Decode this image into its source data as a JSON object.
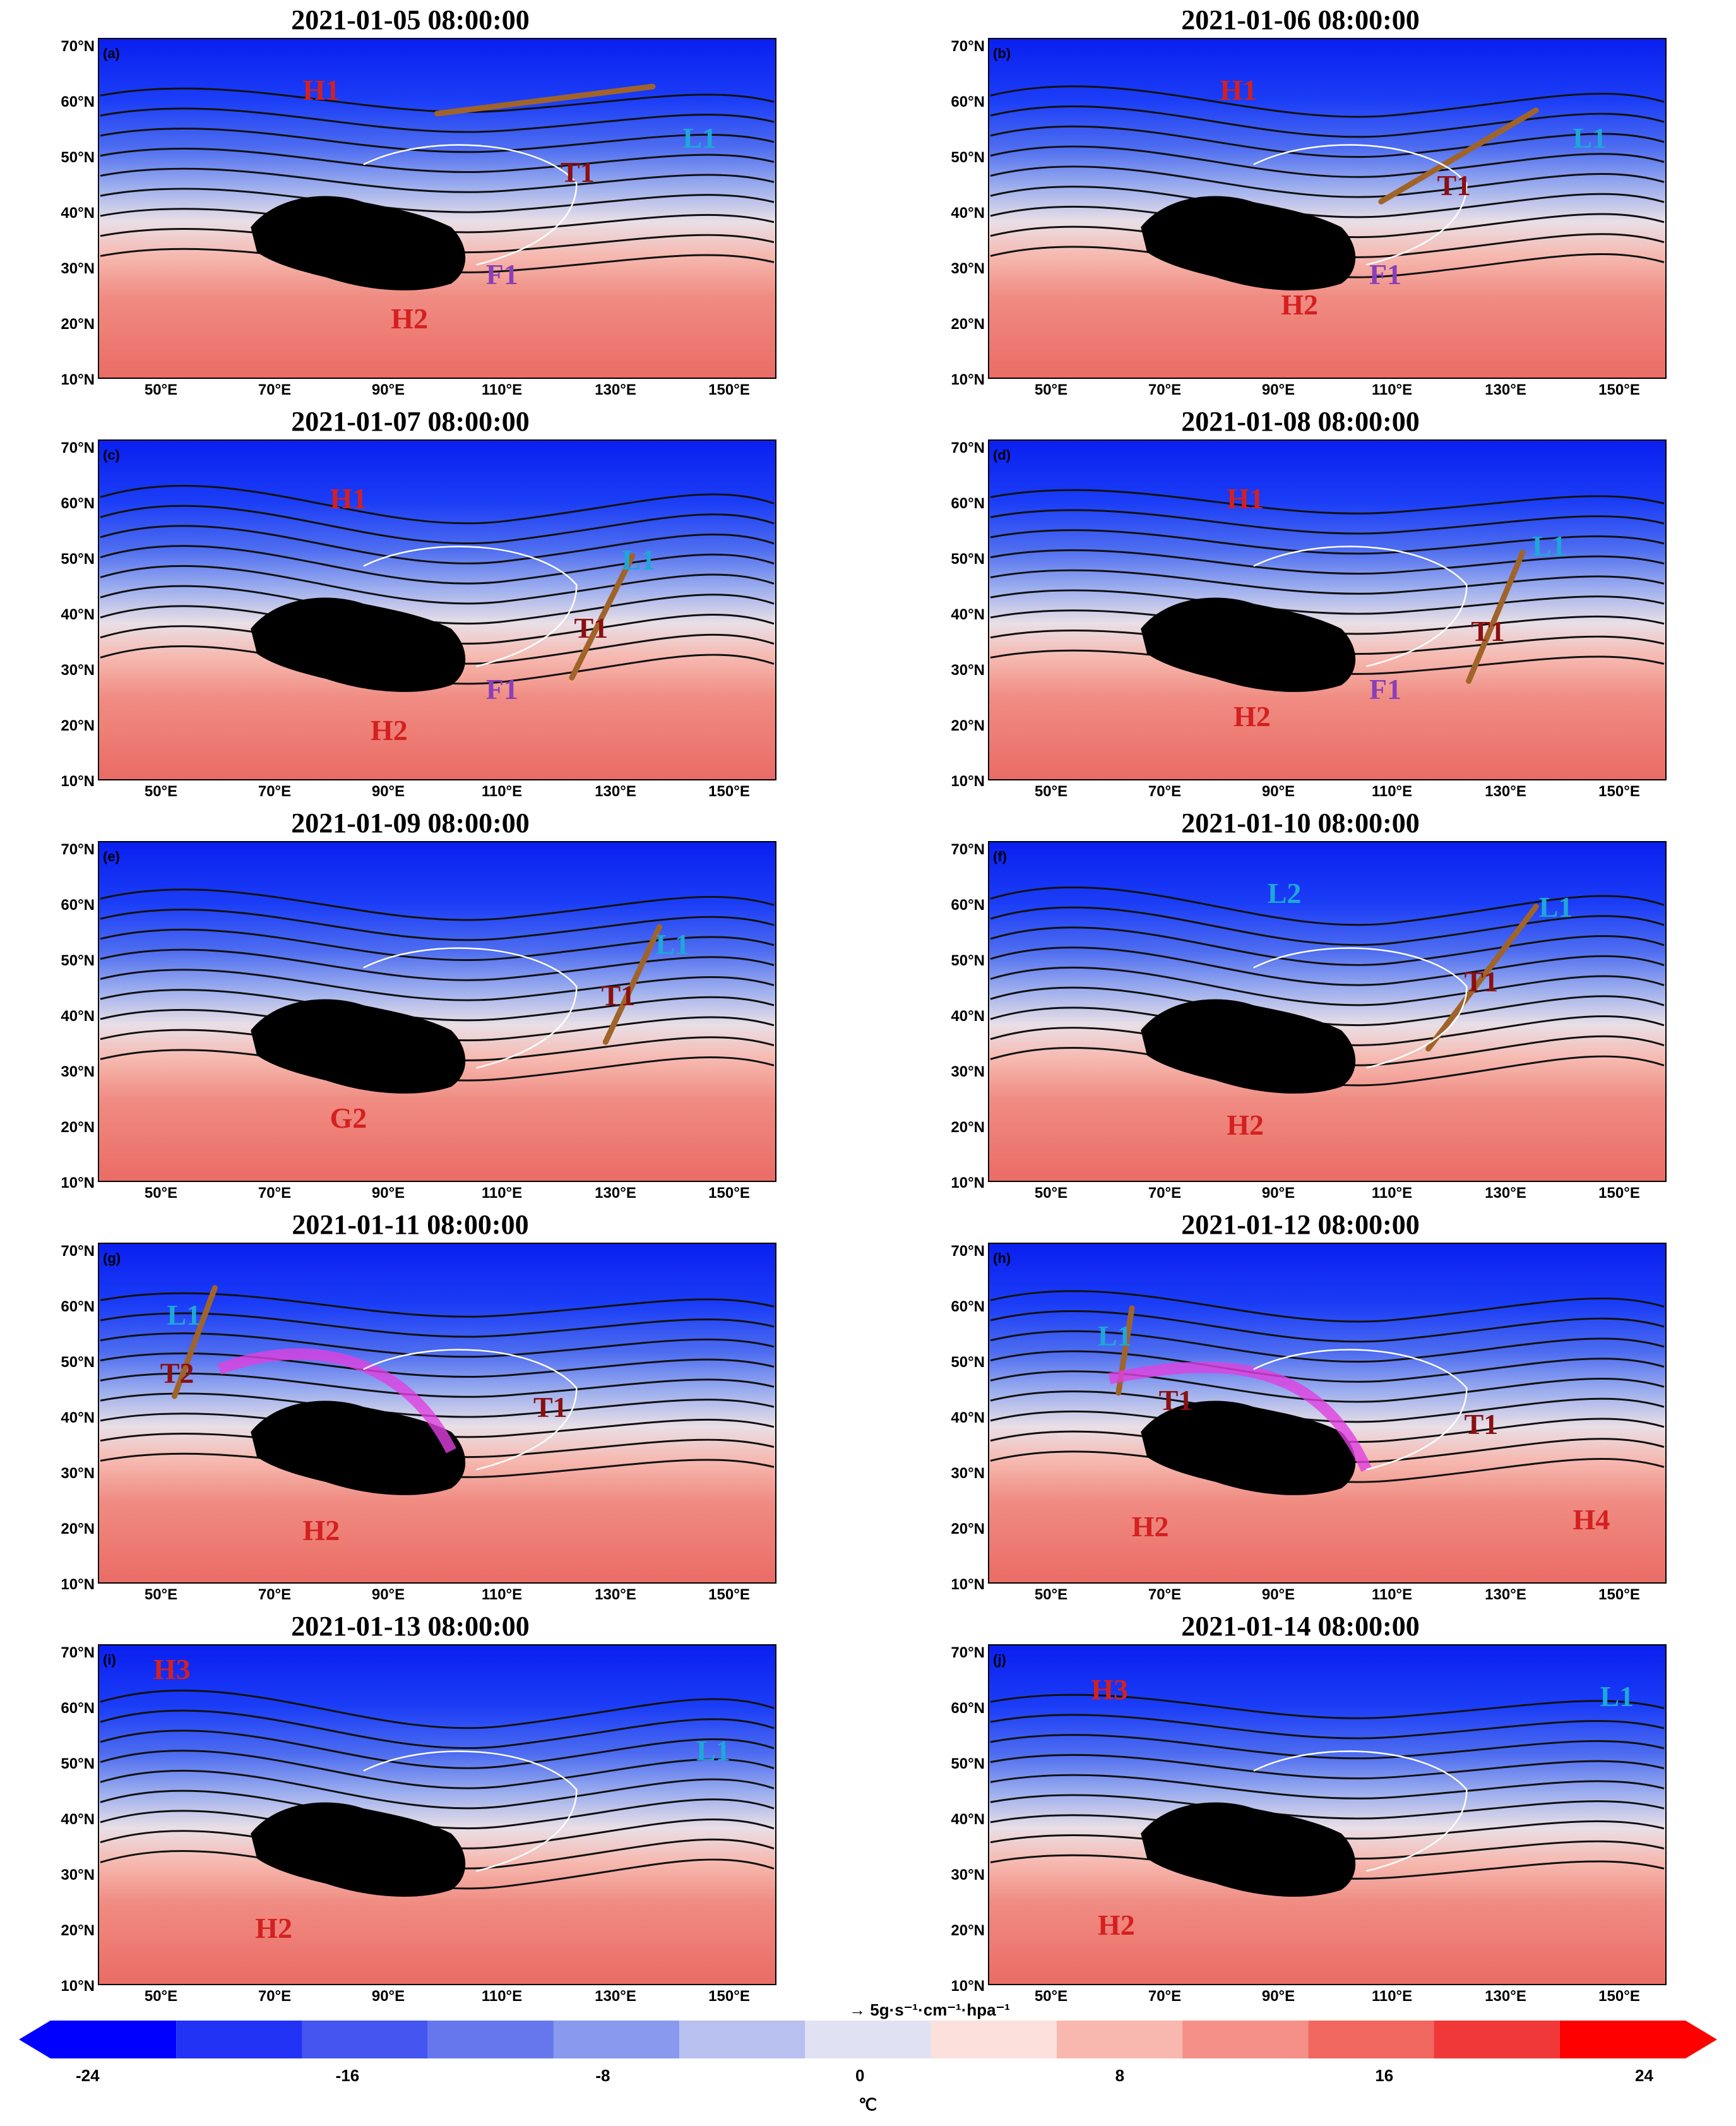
{
  "panels": [
    {
      "title": "2021-01-05 08:00:00",
      "label": "(a)"
    },
    {
      "title": "2021-01-06 08:00:00",
      "label": "(b)"
    },
    {
      "title": "2021-01-07 08:00:00",
      "label": "(c)"
    },
    {
      "title": "2021-01-08 08:00:00",
      "label": "(d)"
    },
    {
      "title": "2021-01-09 08:00:00",
      "label": "(e)"
    },
    {
      "title": "2021-01-10 08:00:00",
      "label": "(f)"
    },
    {
      "title": "2021-01-11 08:00:00",
      "label": "(g)"
    },
    {
      "title": "2021-01-12 08:00:00",
      "label": "(h)"
    },
    {
      "title": "2021-01-13 08:00:00",
      "label": "(i)"
    },
    {
      "title": "2021-01-14 08:00:00",
      "label": "(j)"
    }
  ],
  "lat_ticks": [
    "70°N",
    "60°N",
    "50°N",
    "40°N",
    "30°N",
    "20°N",
    "10°N"
  ],
  "lon_ticks": [
    "50°E",
    "70°E",
    "90°E",
    "110°E",
    "130°E",
    "150°E"
  ],
  "symbols": {
    "H1": "H1",
    "H2": "H2",
    "H3": "H3",
    "H4": "H4",
    "L1": "L1",
    "L2": "L2",
    "T1": "T1",
    "T2": "T2",
    "F1": "F1",
    "G2": "G2"
  },
  "colorbar": {
    "ticks": [
      "-24",
      "-16",
      "-8",
      "0",
      "8",
      "16",
      "24"
    ],
    "unit": "℃",
    "vector_ref": "5g·s⁻¹·cm⁻¹·hpa⁻¹",
    "colors": [
      "#0000ff",
      "#2233f5",
      "#4455f0",
      "#6677ee",
      "#8899ee",
      "#b8c0f0",
      "#e0e2f4",
      "#fbe0dc",
      "#f8b8b0",
      "#f49088",
      "#f06860",
      "#f03838",
      "#ff0000"
    ]
  }
}
